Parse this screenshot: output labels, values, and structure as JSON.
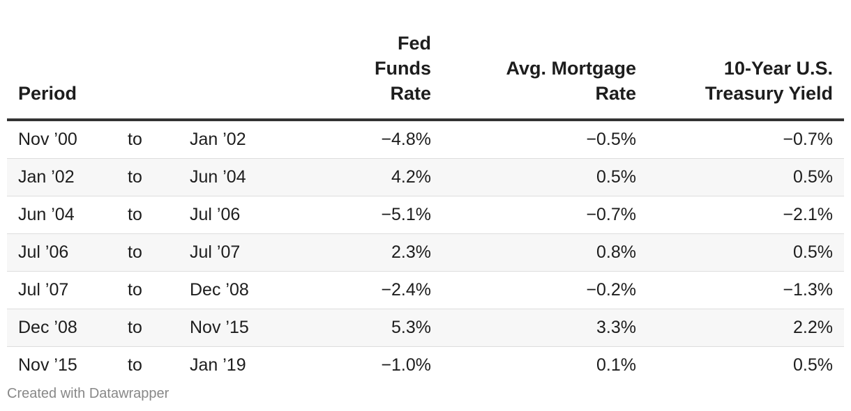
{
  "chart_data": {
    "type": "table",
    "columns": {
      "period": "Period",
      "fed_funds": [
        "Fed Funds",
        "Rate"
      ],
      "mortgage": [
        "Avg. Mortgage",
        "Rate"
      ],
      "treasury": [
        "10-Year U.S.",
        "Treasury Yield"
      ]
    },
    "rows": [
      {
        "start": "Nov ’00",
        "sep": "to",
        "end": "Jan ’02",
        "fed_funds": "−4.8%",
        "mortgage": "−0.5%",
        "treasury": "−0.7%"
      },
      {
        "start": "Jan ’02",
        "sep": "to",
        "end": "Jun ’04",
        "fed_funds": "4.2%",
        "mortgage": "0.5%",
        "treasury": "0.5%"
      },
      {
        "start": "Jun ’04",
        "sep": "to",
        "end": "Jul ’06",
        "fed_funds": "−5.1%",
        "mortgage": "−0.7%",
        "treasury": "−2.1%"
      },
      {
        "start": "Jul ’06",
        "sep": "to",
        "end": "Jul ’07",
        "fed_funds": "2.3%",
        "mortgage": "0.8%",
        "treasury": "0.5%"
      },
      {
        "start": "Jul ’07",
        "sep": "to",
        "end": "Dec ’08",
        "fed_funds": "−2.4%",
        "mortgage": "−0.2%",
        "treasury": "−1.3%"
      },
      {
        "start": "Dec ’08",
        "sep": "to",
        "end": "Nov ’15",
        "fed_funds": "5.3%",
        "mortgage": "3.3%",
        "treasury": "2.2%"
      },
      {
        "start": "Nov ’15",
        "sep": "to",
        "end": "Jan ’19",
        "fed_funds": "−1.0%",
        "mortgage": "0.1%",
        "treasury": "0.5%"
      }
    ]
  },
  "footer": {
    "credit": "Created with Datawrapper"
  }
}
